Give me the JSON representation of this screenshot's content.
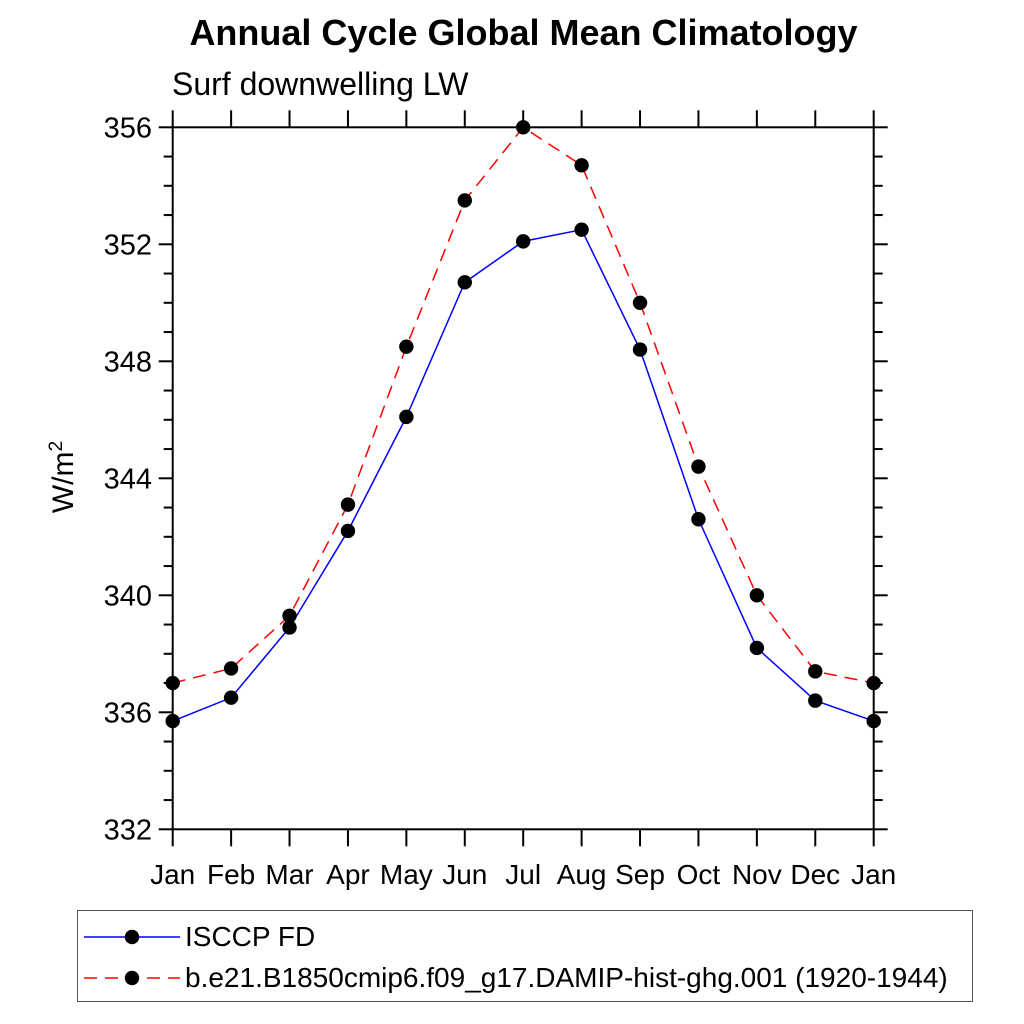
{
  "title": "Annual Cycle Global Mean Climatology",
  "subtitle": "Surf downwelling LW",
  "ylabel": {
    "base": "W/m",
    "exponent": "2"
  },
  "chart_data": {
    "type": "line",
    "title": "Annual Cycle Global Mean Climatology",
    "subtitle": "Surf downwelling LW",
    "ylabel": "W/m^2",
    "categories": [
      "Jan",
      "Feb",
      "Mar",
      "Apr",
      "May",
      "Jun",
      "Jul",
      "Aug",
      "Sep",
      "Oct",
      "Nov",
      "Dec",
      "Jan"
    ],
    "series": [
      {
        "name": "ISCCP FD",
        "color": "#0000ff",
        "line_style": "solid",
        "marker": "filled-circle",
        "marker_color": "#000000",
        "values": [
          335.7,
          336.5,
          338.9,
          342.2,
          346.1,
          350.7,
          352.1,
          352.5,
          348.4,
          342.6,
          338.2,
          336.4,
          335.7
        ]
      },
      {
        "name": "b.e21.B1850cmip6.f09_g17.DAMIP-hist-ghg.001 (1920-1944)",
        "color": "#ff0000",
        "line_style": "dashed",
        "marker": "filled-circle",
        "marker_color": "#000000",
        "values": [
          337.0,
          337.5,
          339.3,
          343.1,
          348.5,
          353.5,
          356.0,
          354.7,
          350.0,
          344.4,
          340.0,
          337.4,
          337.0
        ]
      }
    ],
    "ylim": [
      332,
      356
    ],
    "yticks_major": [
      332,
      336,
      340,
      344,
      348,
      352,
      356
    ],
    "ytick_minor_step": 1,
    "grid": false,
    "legend_position": "bottom-left",
    "axis_color": "#000000"
  }
}
